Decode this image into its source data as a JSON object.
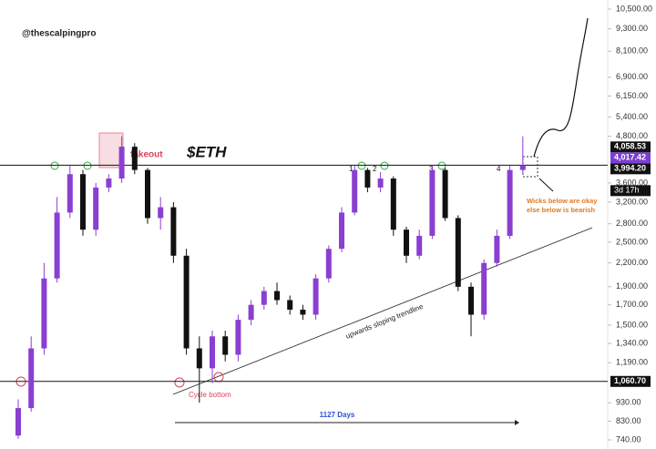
{
  "chart_data": {
    "type": "candlestick",
    "title": "$ETH",
    "watermark": "@thescalpingpro",
    "log_scale": true,
    "up_color": "#8a3fd1",
    "down_color": "#111111",
    "ylim": [
      740,
      10500
    ],
    "yticks": [
      {
        "value": 740,
        "label": "740.00"
      },
      {
        "value": 830,
        "label": "830.00"
      },
      {
        "value": 930,
        "label": "930.00"
      },
      {
        "value": 1190,
        "label": "1,190.00"
      },
      {
        "value": 1340,
        "label": "1,340.00"
      },
      {
        "value": 1500,
        "label": "1,500.00"
      },
      {
        "value": 1700,
        "label": "1,700.00"
      },
      {
        "value": 1900,
        "label": "1,900.00"
      },
      {
        "value": 2200,
        "label": "2,200.00"
      },
      {
        "value": 2500,
        "label": "2,500.00"
      },
      {
        "value": 2800,
        "label": "2,800.00"
      },
      {
        "value": 3200,
        "label": "3,200.00"
      },
      {
        "value": 3600,
        "label": "3,600.00"
      },
      {
        "value": 4800,
        "label": "4,800.00"
      },
      {
        "value": 5400,
        "label": "5,400.00"
      },
      {
        "value": 6150,
        "label": "6,150.00"
      },
      {
        "value": 6900,
        "label": "6,900.00"
      },
      {
        "value": 8100,
        "label": "8,100.00"
      },
      {
        "value": 9300,
        "label": "9,300.00"
      },
      {
        "value": 10500,
        "label": "10,500.00"
      }
    ],
    "open": [
      760,
      900,
      1300,
      2000,
      3000,
      3800,
      2700,
      3500,
      3700,
      4500,
      3900,
      2900,
      3100,
      2300,
      1300,
      1150,
      1400,
      1250,
      1550,
      1700,
      1850,
      1750,
      1650,
      1600,
      2000,
      2400,
      3000,
      3900,
      3500,
      3700,
      2700,
      2300,
      2600,
      3900,
      2900,
      1900,
      1600,
      2200,
      2600,
      3900
    ],
    "high": [
      950,
      1400,
      2200,
      3300,
      4000,
      3900,
      3600,
      3800,
      4800,
      4600,
      3950,
      3300,
      3200,
      2400,
      1400,
      1450,
      1450,
      1600,
      1750,
      1900,
      1950,
      1800,
      1700,
      2050,
      2450,
      3100,
      4000,
      3950,
      3850,
      3750,
      2750,
      2700,
      4000,
      3950,
      2950,
      1950,
      2250,
      2700,
      4000,
      4800
    ],
    "low": [
      745,
      880,
      1250,
      1950,
      2900,
      2600,
      2600,
      3400,
      3600,
      3800,
      2800,
      2700,
      2200,
      1250,
      930,
      1050,
      1200,
      1200,
      1500,
      1650,
      1700,
      1600,
      1550,
      1550,
      1950,
      2350,
      2950,
      3400,
      3400,
      2600,
      2200,
      2250,
      2550,
      2850,
      1850,
      1400,
      1550,
      2150,
      2550,
      3800
    ],
    "close": [
      900,
      1300,
      2000,
      3000,
      3800,
      2700,
      3500,
      3700,
      4500,
      3900,
      2900,
      3100,
      2300,
      1300,
      1150,
      1400,
      1250,
      1550,
      1700,
      1850,
      1750,
      1650,
      1600,
      2000,
      2400,
      3000,
      3900,
      3500,
      3700,
      2700,
      2300,
      2600,
      3900,
      2900,
      1900,
      1600,
      2200,
      2600,
      3900,
      4017.42
    ],
    "levels": [
      4017.42,
      1060.7
    ],
    "price_tags": [
      {
        "value": 4058.53,
        "label": "4,058.53"
      },
      {
        "value": 4017.42,
        "label": "4,017.42"
      },
      {
        "value": 3994.2,
        "label": "3,994.20"
      },
      {
        "value": 1060.7,
        "label": "1,060.70"
      }
    ],
    "countdown": "3d 17h",
    "annotations": {
      "fakeout": "fakeout",
      "cycle_bottom": "Cycle bottom",
      "days": "1127 Days",
      "trendline": "upwards sloping trendline",
      "touches": [
        "1",
        "2",
        "3",
        "4"
      ],
      "wicks_1": "Wicks below are okay",
      "wicks_2": "else below is bearish"
    }
  }
}
